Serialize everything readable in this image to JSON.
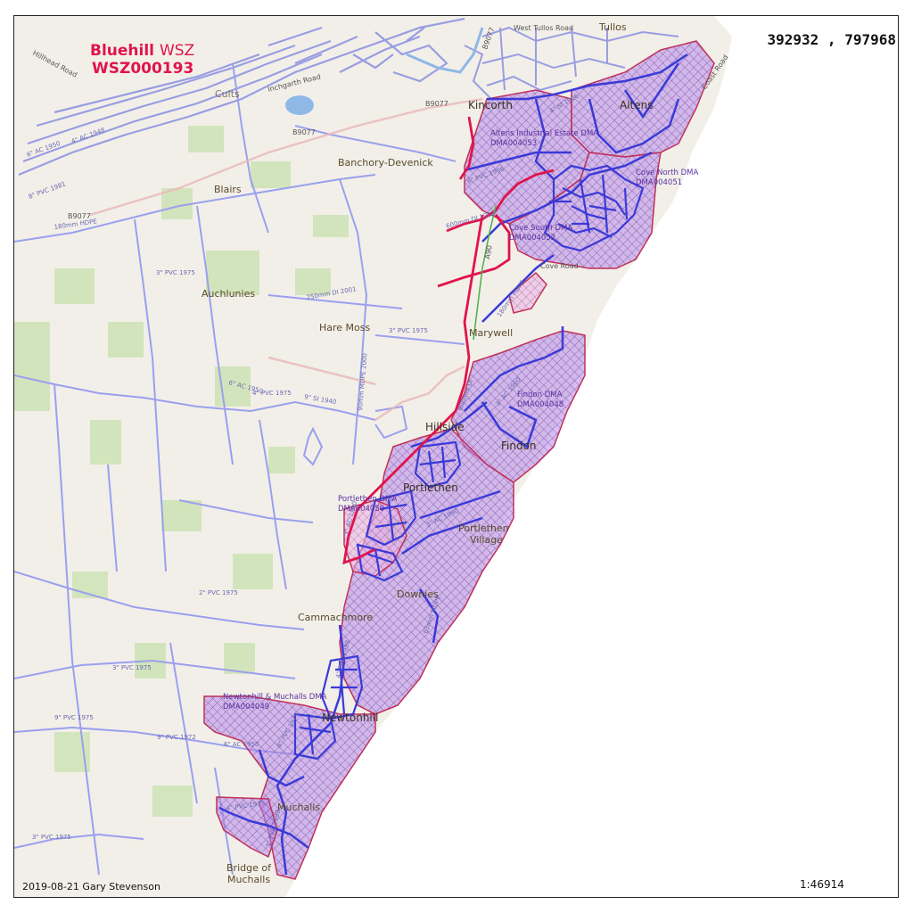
{
  "zone": {
    "name_bold": "Bluehill",
    "name_suffix": "WSZ",
    "code": "WSZ000193"
  },
  "coordinates": "392932 , 797968",
  "credit": "2019-08-21 Gary Stevenson",
  "scale": "1:46914",
  "colors": {
    "land": "#f2efe9",
    "green": "#cfe3b8",
    "sea": "#ffffff",
    "dma_fill": "#9b6fd6",
    "dma_border": "#c0315a",
    "main_pipe": "#3a3ad8",
    "trunk_main": "#e0144c",
    "minor_pipe": "#9aa0ee",
    "title": "#e0144c"
  },
  "places": [
    {
      "id": "tullos",
      "name": "Tullos"
    },
    {
      "id": "west-tullos-road",
      "name": "West Tullos Road"
    },
    {
      "id": "kincorth",
      "name": "Kincorth"
    },
    {
      "id": "altens",
      "name": "Altens"
    },
    {
      "id": "banchory-devenick",
      "name": "Banchory-Devenick"
    },
    {
      "id": "blairs",
      "name": "Blairs"
    },
    {
      "id": "auchlunies",
      "name": "Auchlunies"
    },
    {
      "id": "hare-moss",
      "name": "Hare Moss"
    },
    {
      "id": "marywell",
      "name": "Marywell"
    },
    {
      "id": "hillside",
      "name": "Hillside"
    },
    {
      "id": "findon",
      "name": "Findon"
    },
    {
      "id": "portlethen",
      "name": "Portlethen"
    },
    {
      "id": "portlethen-village-1",
      "name": "Portlethen"
    },
    {
      "id": "portlethen-village-2",
      "name": "Village"
    },
    {
      "id": "downies",
      "name": "Downies"
    },
    {
      "id": "cammachmore",
      "name": "Cammachmore"
    },
    {
      "id": "newtonhill",
      "name": "Newtonhill"
    },
    {
      "id": "muchalls",
      "name": "Muchalls"
    },
    {
      "id": "bridge-of-1",
      "name": "Bridge of"
    },
    {
      "id": "bridge-of-2",
      "name": "Muchalls"
    },
    {
      "id": "cults",
      "name": "Cults"
    },
    {
      "id": "hillhead-road",
      "name": "Hillhead Road"
    },
    {
      "id": "inchgarth-road",
      "name": "Inchgarth Road"
    },
    {
      "id": "cove-road",
      "name": "Cove Road"
    },
    {
      "id": "coast-road",
      "name": "Coast Road"
    }
  ],
  "roads": [
    {
      "id": "b9077-a",
      "name": "B9077"
    },
    {
      "id": "b9077-b",
      "name": "B9077"
    },
    {
      "id": "b9077-c",
      "name": "B9077"
    },
    {
      "id": "b9077-d",
      "name": "B9077"
    },
    {
      "id": "a90",
      "name": "A90"
    }
  ],
  "dmas": [
    {
      "id": "altens-ie",
      "name": "Altens Industrial Estate DMA",
      "code": "DMA004053"
    },
    {
      "id": "cove-north",
      "name": "Cove North DMA",
      "code": "DMA004051"
    },
    {
      "id": "cove-south",
      "name": "Cove South DMA",
      "code": "DMA004052"
    },
    {
      "id": "findon",
      "name": "Findon DMA",
      "code": "DMA004048"
    },
    {
      "id": "portlethen",
      "name": "Portlethen DMA",
      "code": "DMA004050"
    },
    {
      "id": "newtonhill-muchalls",
      "name": "Newtonhill & Muchalls DMA",
      "code": "DMA004049"
    }
  ],
  "pipe_labels": [
    {
      "id": "p1",
      "text": "6\" AC 1950"
    },
    {
      "id": "p2",
      "text": "4\" PVC 1975"
    },
    {
      "id": "p3",
      "text": "3\" PVC 1975"
    },
    {
      "id": "p4",
      "text": "9\" SI 1940"
    },
    {
      "id": "p5",
      "text": "2\" PVC 1975"
    },
    {
      "id": "p6",
      "text": "3\" PVC 1975"
    },
    {
      "id": "p7",
      "text": "9\" PVC 1975"
    },
    {
      "id": "p8",
      "text": "9\" PVC 1972"
    },
    {
      "id": "p9",
      "text": "6\" AC 1950"
    },
    {
      "id": "p10",
      "text": "3\" PVC 1975"
    },
    {
      "id": "p11",
      "text": "4\" SI 1906"
    },
    {
      "id": "p12",
      "text": "6\" PVC 1996"
    },
    {
      "id": "p13",
      "text": "600mm DI 1983"
    },
    {
      "id": "p14",
      "text": "180mm HDPE"
    },
    {
      "id": "p15",
      "text": "600mm DI"
    },
    {
      "id": "p16",
      "text": "3\" AC 1960"
    },
    {
      "id": "p17",
      "text": "3\" AC 1990"
    },
    {
      "id": "p18",
      "text": "63mm MDPE"
    },
    {
      "id": "p19",
      "text": "4\" PVC 1975"
    },
    {
      "id": "p20",
      "text": "3\" PVC 1998"
    },
    {
      "id": "p21",
      "text": "8\" PVC 1975"
    },
    {
      "id": "p22",
      "text": "4\" PVC 1998"
    },
    {
      "id": "p23",
      "text": "3\" AC 1950"
    },
    {
      "id": "p24",
      "text": "180mm HDPE"
    },
    {
      "id": "p25",
      "text": "250mm DI 2001"
    },
    {
      "id": "p26",
      "text": "90mm MDPE 2000"
    },
    {
      "id": "p27",
      "text": "3\" PVC 1975"
    },
    {
      "id": "p28",
      "text": "6\" AC 1950"
    },
    {
      "id": "p29",
      "text": "4\" AC 1948"
    },
    {
      "id": "p30",
      "text": "8\" PVC 1981"
    }
  ]
}
